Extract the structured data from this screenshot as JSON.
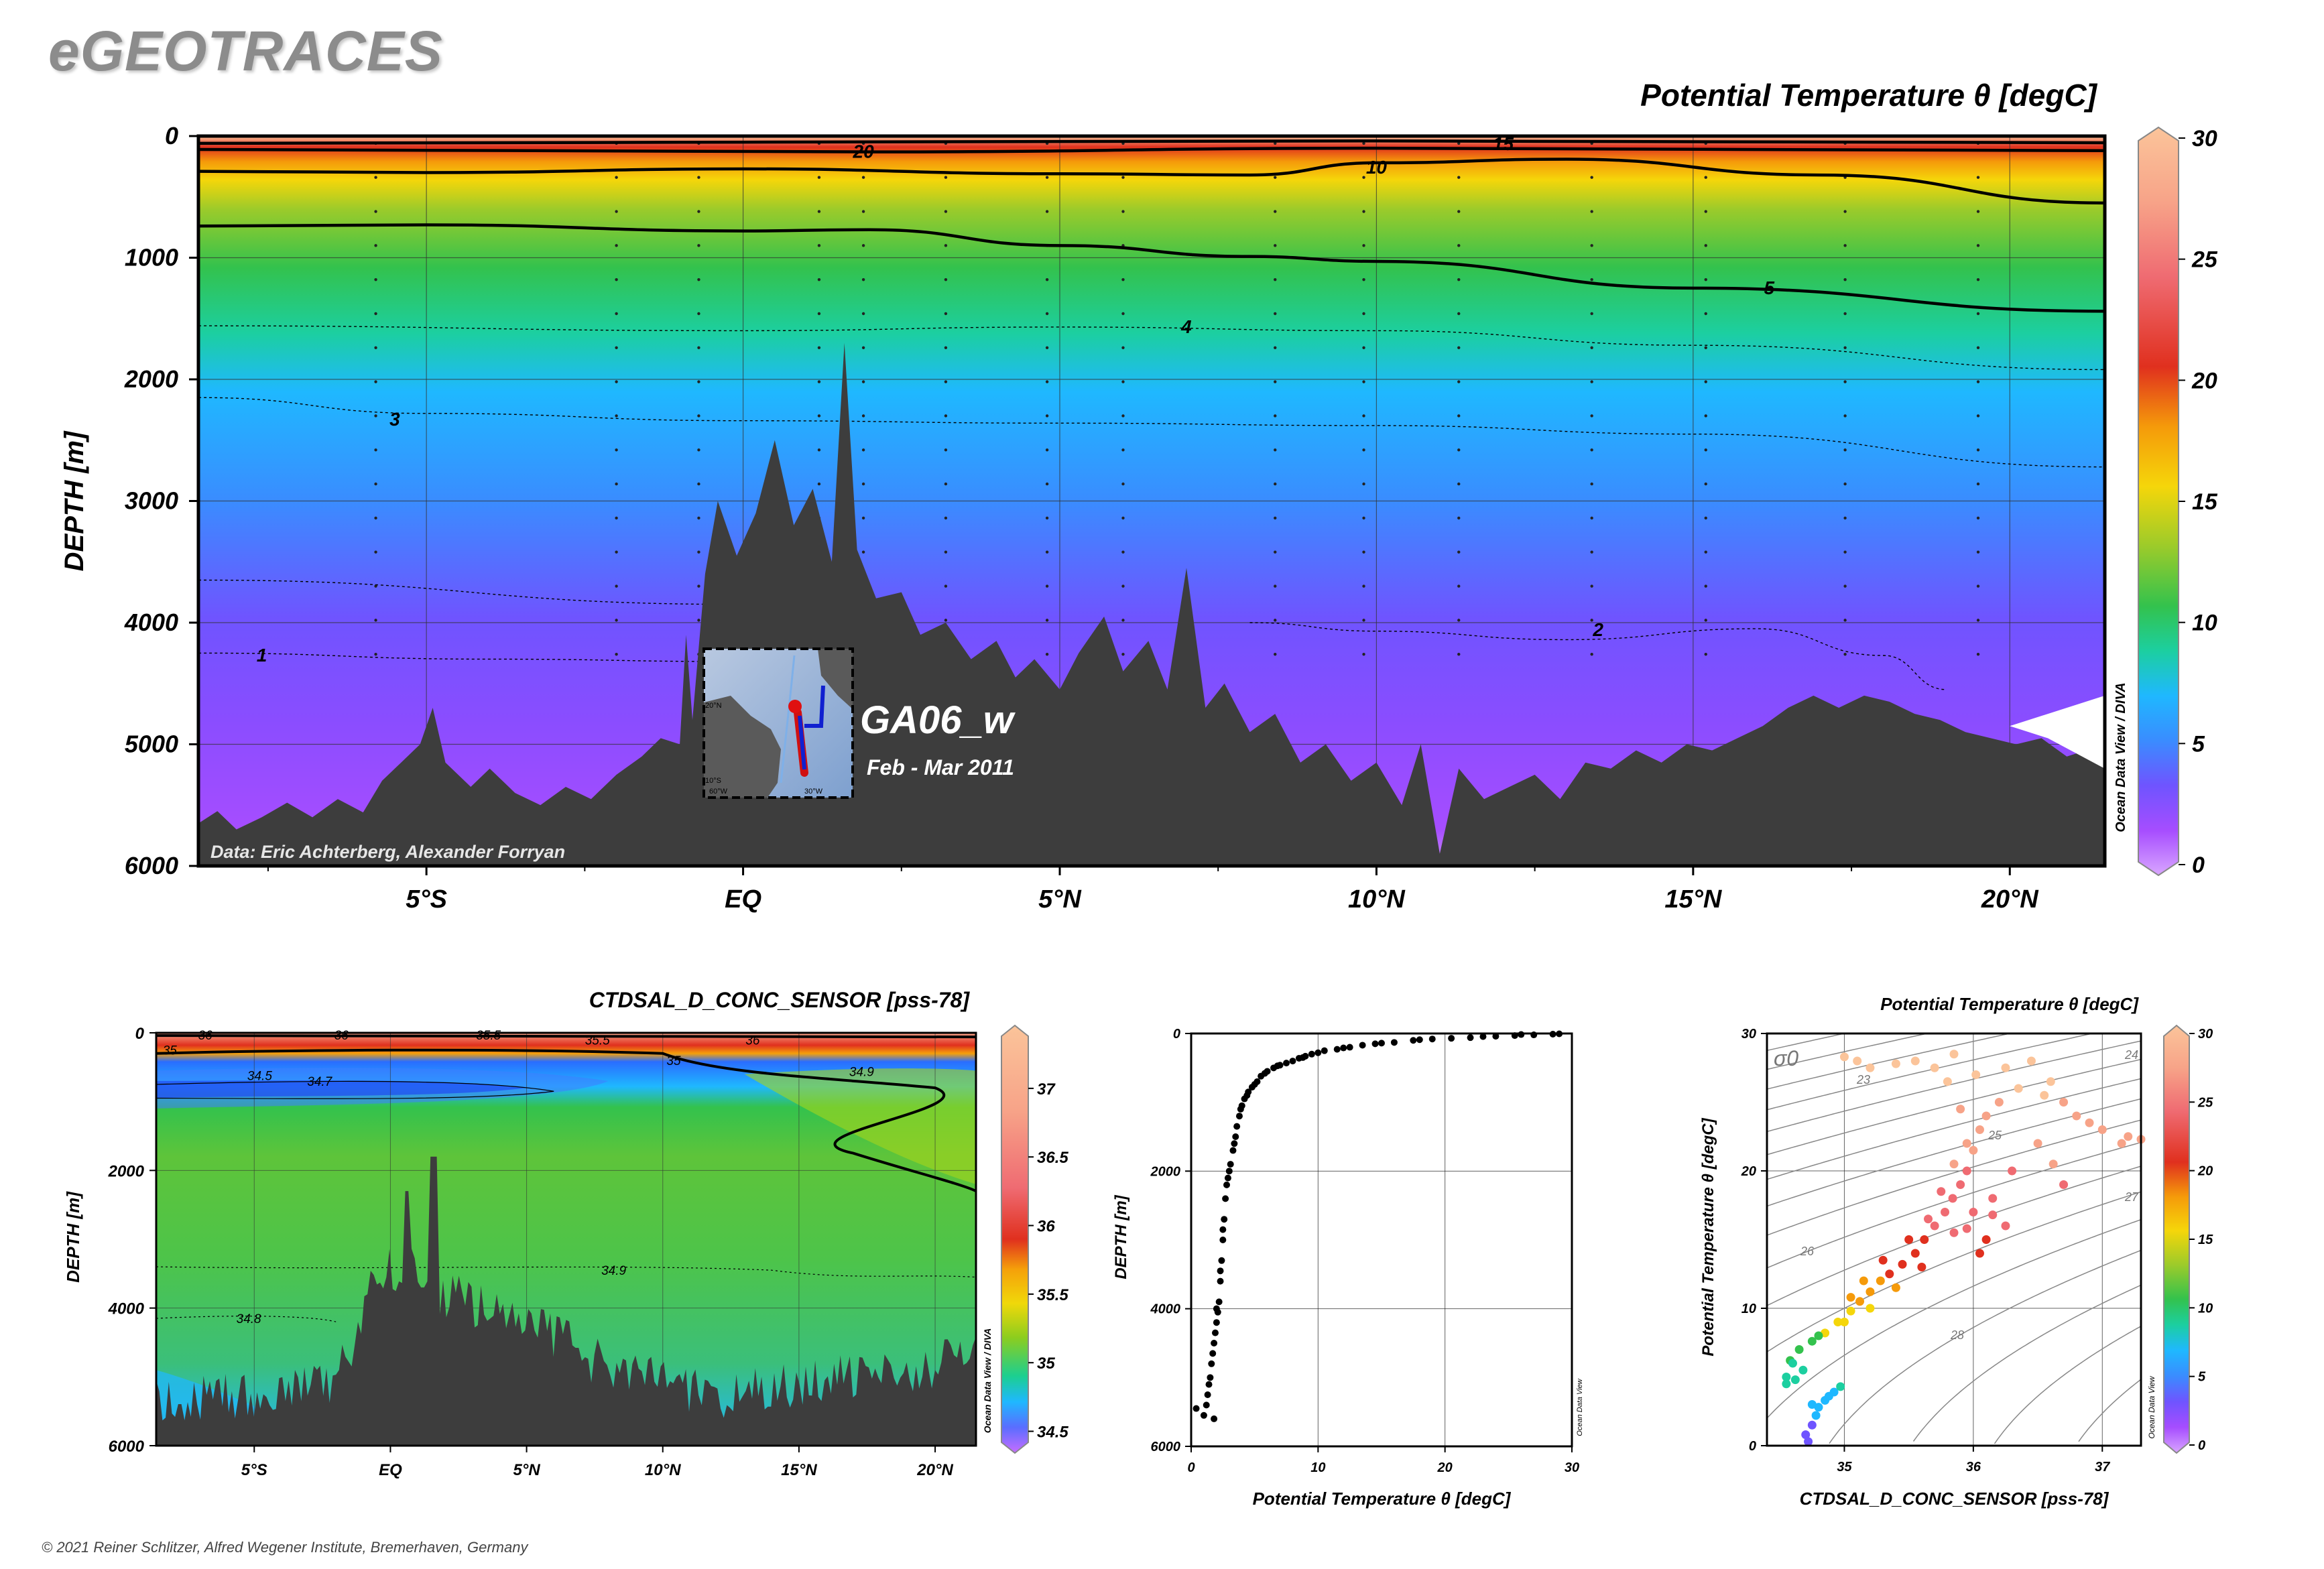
{
  "logo": "eGEOTRACES",
  "copyright": "© 2021 Reiner Schlitzer, Alfred Wegener Institute, Bremerhaven, Germany",
  "chart_data": [
    {
      "type": "heatmap",
      "title": "Potential Temperature θ [degC]",
      "ylabel": "DEPTH [m]",
      "ylim": [
        6000,
        0
      ],
      "yticks": [
        0,
        1000,
        2000,
        3000,
        4000,
        5000,
        6000
      ],
      "ytick_labels": [
        "0",
        "1000",
        "2000",
        "3000",
        "4000",
        "5000",
        "6000"
      ],
      "xlim": [
        -8.6,
        21.5
      ],
      "xticks": [
        -5,
        0,
        5,
        10,
        15,
        20
      ],
      "xtick_labels": [
        "5°S",
        "EQ",
        "5°N",
        "10°N",
        "15°N",
        "20°N"
      ],
      "colorbar": {
        "range": [
          0,
          30
        ],
        "ticks": [
          "0",
          "5",
          "10",
          "15",
          "20",
          "25",
          "30"
        ],
        "label": "Ocean Data View / DIVA"
      },
      "contours": [
        {
          "level": 20,
          "label": "20",
          "depths": [
            [
              -8.6,
              60
            ],
            [
              0,
              50
            ],
            [
              10,
              40
            ],
            [
              21.5,
              55
            ]
          ]
        },
        {
          "level": 15,
          "label": "15",
          "depths": [
            [
              -8.6,
              110
            ],
            [
              2,
              130
            ],
            [
              10,
              100
            ],
            [
              21.5,
              120
            ]
          ]
        },
        {
          "level": 10,
          "label": "10",
          "depths": [
            [
              -8.6,
              290
            ],
            [
              -5,
              300
            ],
            [
              0,
              270
            ],
            [
              5,
              310
            ],
            [
              8,
              320
            ],
            [
              10,
              220
            ],
            [
              13,
              190
            ],
            [
              17,
              320
            ],
            [
              21.5,
              550
            ]
          ]
        },
        {
          "level": 5,
          "label": "5",
          "depths": [
            [
              -8.6,
              740
            ],
            [
              -5,
              730
            ],
            [
              0,
              780
            ],
            [
              2,
              770
            ],
            [
              5,
              900
            ],
            [
              8,
              990
            ],
            [
              10,
              1030
            ],
            [
              15,
              1250
            ],
            [
              21.5,
              1440
            ]
          ]
        },
        {
          "level": 4,
          "label": "4",
          "depths": [
            [
              -8.6,
              1560
            ],
            [
              0,
              1600
            ],
            [
              5,
              1570
            ],
            [
              10,
              1600
            ],
            [
              15,
              1720
            ],
            [
              21.5,
              1920
            ]
          ]
        },
        {
          "level": 3,
          "label": "3",
          "depths": [
            [
              -8.6,
              2150
            ],
            [
              -5,
              2280
            ],
            [
              0,
              2340
            ],
            [
              5,
              2360
            ],
            [
              10,
              2380
            ],
            [
              15,
              2450
            ],
            [
              21.5,
              2720
            ]
          ]
        },
        {
          "level": 2,
          "label": "2",
          "depths": [
            [
              -8.6,
              3650
            ],
            [
              0,
              3850
            ],
            [
              2,
              3970
            ]
          ]
        },
        {
          "level": 2,
          "label": "2",
          "depths": [
            [
              8,
              4000
            ],
            [
              10,
              4070
            ],
            [
              13,
              4140
            ],
            [
              16,
              4050
            ],
            [
              18,
              4270
            ],
            [
              19,
              4550
            ]
          ]
        },
        {
          "level": 1,
          "label": "1",
          "depths": [
            [
              -8.6,
              4250
            ],
            [
              -4,
              4300
            ],
            [
              0,
              4320
            ]
          ]
        }
      ],
      "annotations": [
        "Data: Eric Achterberg, Alexander Forryan",
        "GA06_w",
        "Feb - Mar 2011"
      ],
      "inset_map_labels": [
        "20°N",
        "10°S",
        "60°W",
        "30°W"
      ]
    },
    {
      "type": "heatmap",
      "title": "CTDSAL_D_CONC_SENSOR [pss-78]",
      "ylabel": "DEPTH [m]",
      "ylim": [
        6000,
        0
      ],
      "yticks": [
        0,
        2000,
        4000,
        6000
      ],
      "ytick_labels": [
        "0",
        "2000",
        "4000",
        "6000"
      ],
      "xlim": [
        -8.6,
        21.5
      ],
      "xticks": [
        -5,
        0,
        5,
        10,
        15,
        20
      ],
      "xtick_labels": [
        "5°S",
        "EQ",
        "5°N",
        "10°N",
        "15°N",
        "20°N"
      ],
      "colorbar": {
        "range": [
          34.4,
          37.4
        ],
        "ticks": [
          "34.5",
          "35",
          "35.5",
          "36",
          "36.5",
          "37"
        ],
        "label": "Ocean Data View / DIVA"
      },
      "contour_labels": [
        "36",
        "36",
        "35.5",
        "35.5",
        "36",
        "35",
        "34.9",
        "34.5",
        "34.7",
        "34.9",
        "34.8",
        "35"
      ]
    },
    {
      "type": "scatter",
      "xlabel": "Potential Temperature θ [degC]",
      "ylabel": "DEPTH [m]",
      "xlim": [
        0,
        30
      ],
      "ylim": [
        6000,
        0
      ],
      "xticks": [
        "0",
        "10",
        "20",
        "30"
      ],
      "yticks": [
        "0",
        "2000",
        "4000",
        "6000"
      ],
      "watermark": "Ocean Data View",
      "points": [
        [
          28.5,
          10
        ],
        [
          29.0,
          5
        ],
        [
          27.0,
          20
        ],
        [
          25.5,
          30
        ],
        [
          24.0,
          40
        ],
        [
          22.0,
          60
        ],
        [
          20.5,
          70
        ],
        [
          19.0,
          80
        ],
        [
          17.5,
          100
        ],
        [
          16.0,
          130
        ],
        [
          14.5,
          150
        ],
        [
          13.5,
          170
        ],
        [
          12.5,
          200
        ],
        [
          11.5,
          230
        ],
        [
          10.5,
          250
        ],
        [
          10.0,
          280
        ],
        [
          9.5,
          300
        ],
        [
          9.0,
          330
        ],
        [
          8.5,
          360
        ],
        [
          8.0,
          400
        ],
        [
          7.5,
          430
        ],
        [
          7.0,
          460
        ],
        [
          6.5,
          500
        ],
        [
          6.0,
          550
        ],
        [
          5.5,
          620
        ],
        [
          5.2,
          700
        ],
        [
          4.8,
          780
        ],
        [
          4.5,
          850
        ],
        [
          4.2,
          950
        ],
        [
          4.0,
          1050
        ],
        [
          3.8,
          1200
        ],
        [
          3.6,
          1350
        ],
        [
          3.5,
          1500
        ],
        [
          3.3,
          1700
        ],
        [
          3.1,
          1900
        ],
        [
          2.9,
          2100
        ],
        [
          2.7,
          2400
        ],
        [
          2.6,
          2700
        ],
        [
          2.5,
          3000
        ],
        [
          2.4,
          3300
        ],
        [
          2.3,
          3600
        ],
        [
          2.2,
          3900
        ],
        [
          2.0,
          4200
        ],
        [
          1.8,
          4500
        ],
        [
          1.6,
          4800
        ],
        [
          1.4,
          5100
        ],
        [
          1.2,
          5400
        ],
        [
          26.0,
          15
        ],
        [
          23.0,
          45
        ],
        [
          18.0,
          90
        ],
        [
          15.0,
          140
        ],
        [
          12.0,
          210
        ],
        [
          8.8,
          350
        ],
        [
          6.8,
          470
        ],
        [
          5.8,
          580
        ],
        [
          5.0,
          740
        ],
        [
          4.4,
          900
        ],
        [
          3.9,
          1100
        ],
        [
          3.4,
          1600
        ],
        [
          3.0,
          2000
        ],
        [
          2.8,
          2200
        ],
        [
          2.5,
          2850
        ],
        [
          2.3,
          3450
        ],
        [
          2.1,
          4050
        ],
        [
          1.9,
          4350
        ],
        [
          1.7,
          4650
        ],
        [
          1.5,
          5000
        ],
        [
          1.3,
          5250
        ],
        [
          0.4,
          5450
        ],
        [
          1.0,
          5550
        ],
        [
          2.0,
          4000
        ],
        [
          1.8,
          5600
        ]
      ]
    },
    {
      "type": "scatter",
      "title": "Potential Temperature θ [degC]",
      "xlabel": "CTDSAL_D_CONC_SENSOR [pss-78]",
      "ylabel": "Potential Temperature θ [degC]",
      "xlim": [
        34.4,
        37.3
      ],
      "ylim": [
        0,
        30
      ],
      "xticks": [
        "35",
        "36",
        "37"
      ],
      "yticks": [
        "0",
        "10",
        "20",
        "30"
      ],
      "colorbar": {
        "range": [
          0,
          30
        ],
        "ticks": [
          "0",
          "5",
          "10",
          "15",
          "20",
          "25",
          "30"
        ],
        "label": "Ocean Data View"
      },
      "isopycnal_label": "σ0",
      "isopycnal_labels": [
        "23",
        "24",
        "25",
        "26",
        "27",
        "28"
      ],
      "points": [
        [
          34.72,
          0.3
        ],
        [
          34.7,
          0.8
        ],
        [
          34.75,
          1.5
        ],
        [
          34.78,
          2.2
        ],
        [
          34.8,
          2.8
        ],
        [
          34.85,
          3.3
        ],
        [
          34.88,
          3.6
        ],
        [
          34.92,
          3.9
        ],
        [
          34.97,
          4.3
        ],
        [
          34.55,
          4.5
        ],
        [
          34.62,
          4.8
        ],
        [
          34.68,
          5.5
        ],
        [
          34.58,
          6.2
        ],
        [
          34.65,
          7.0
        ],
        [
          34.75,
          7.6
        ],
        [
          34.85,
          8.2
        ],
        [
          34.95,
          9.0
        ],
        [
          35.05,
          9.8
        ],
        [
          35.12,
          10.5
        ],
        [
          35.2,
          11.2
        ],
        [
          35.28,
          12.0
        ],
        [
          35.35,
          12.5
        ],
        [
          35.45,
          13.2
        ],
        [
          35.55,
          14.0
        ],
        [
          35.62,
          15.0
        ],
        [
          35.7,
          16.0
        ],
        [
          35.78,
          17.0
        ],
        [
          35.84,
          18.0
        ],
        [
          35.9,
          19.0
        ],
        [
          35.95,
          20.0
        ],
        [
          36.0,
          21.5
        ],
        [
          36.05,
          23.0
        ],
        [
          36.1,
          24.0
        ],
        [
          36.2,
          25.0
        ],
        [
          36.35,
          26.0
        ],
        [
          36.55,
          25.5
        ],
        [
          36.8,
          24.0
        ],
        [
          37.0,
          23.0
        ],
        [
          37.2,
          22.5
        ],
        [
          36.5,
          22.0
        ],
        [
          36.3,
          20.0
        ],
        [
          36.15,
          18.0
        ],
        [
          36.0,
          17.0
        ],
        [
          35.85,
          15.5
        ],
        [
          35.6,
          13.0
        ],
        [
          35.4,
          11.5
        ],
        [
          35.2,
          10.0
        ],
        [
          35.0,
          9.0
        ],
        [
          34.8,
          8.0
        ],
        [
          34.6,
          6.0
        ],
        [
          34.55,
          5.0
        ],
        [
          34.75,
          3.0
        ],
        [
          35.05,
          10.8
        ],
        [
          35.15,
          12.0
        ],
        [
          35.3,
          13.5
        ],
        [
          35.5,
          15.0
        ],
        [
          35.65,
          16.5
        ],
        [
          35.75,
          18.5
        ],
        [
          35.85,
          20.5
        ],
        [
          35.95,
          22.0
        ],
        [
          35.9,
          24.5
        ],
        [
          35.8,
          26.5
        ],
        [
          35.7,
          27.5
        ],
        [
          35.55,
          28.0
        ],
        [
          35.4,
          27.8
        ],
        [
          35.2,
          27.5
        ],
        [
          35.0,
          28.3
        ],
        [
          35.1,
          28.0
        ],
        [
          35.85,
          28.5
        ],
        [
          36.02,
          27.0
        ],
        [
          36.25,
          27.5
        ],
        [
          36.45,
          28.0
        ],
        [
          36.6,
          26.5
        ],
        [
          36.7,
          25.0
        ],
        [
          36.9,
          23.5
        ],
        [
          37.15,
          22.0
        ],
        [
          37.3,
          22.3
        ],
        [
          36.62,
          20.5
        ],
        [
          36.7,
          19.0
        ],
        [
          36.1,
          15.0
        ],
        [
          36.25,
          16.0
        ],
        [
          35.95,
          15.8
        ],
        [
          36.05,
          14.0
        ],
        [
          36.15,
          16.8
        ]
      ]
    }
  ]
}
